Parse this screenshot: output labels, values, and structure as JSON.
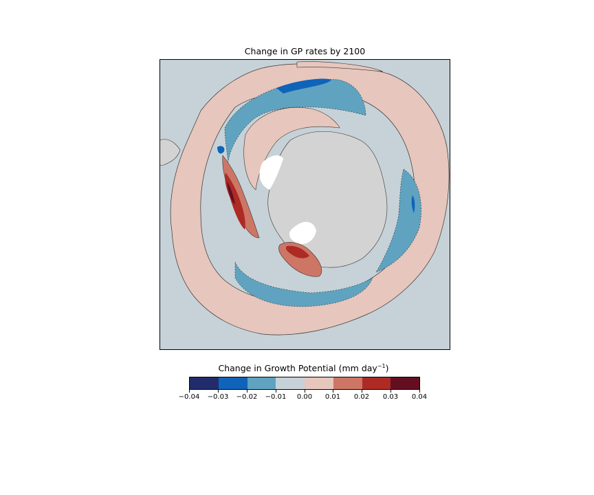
{
  "title": "Change in GP rates by 2100",
  "colorbar": {
    "label_main": "Change in Growth Potential (mm day",
    "label_sup": "−1",
    "label_close": ")",
    "ticks": [
      "−0.04",
      "−0.03",
      "−0.02",
      "−0.01",
      "0.00",
      "0.01",
      "0.02",
      "0.03",
      "0.04"
    ],
    "colors": [
      "#222c6b",
      "#0f63b9",
      "#5fa3c0",
      "#c6d2d7",
      "#e6c6bd",
      "#cd7665",
      "#ad2b24",
      "#640f21"
    ]
  },
  "map": {
    "projection": "south-polar-stereographic",
    "land_color": "#d3d3d3",
    "ice_color": "#ffffff",
    "ocean_background_color": "#c6d2d7",
    "regions": [
      {
        "name": "outer-warming-belt",
        "change_bin": "0.00 to 0.01"
      },
      {
        "name": "middle-cooling-ring",
        "change_bin": "-0.02 to -0.01"
      },
      {
        "name": "strong-cooling-patch",
        "change_bin": "-0.03 to -0.02"
      },
      {
        "name": "inner-warming-ring",
        "change_bin": "0.00 to 0.01"
      },
      {
        "name": "antarctic-peninsula-hotspot",
        "change_bin": "0.03 to 0.04"
      },
      {
        "name": "ross-sea-hotspot",
        "change_bin": "0.02 to 0.03"
      }
    ]
  }
}
